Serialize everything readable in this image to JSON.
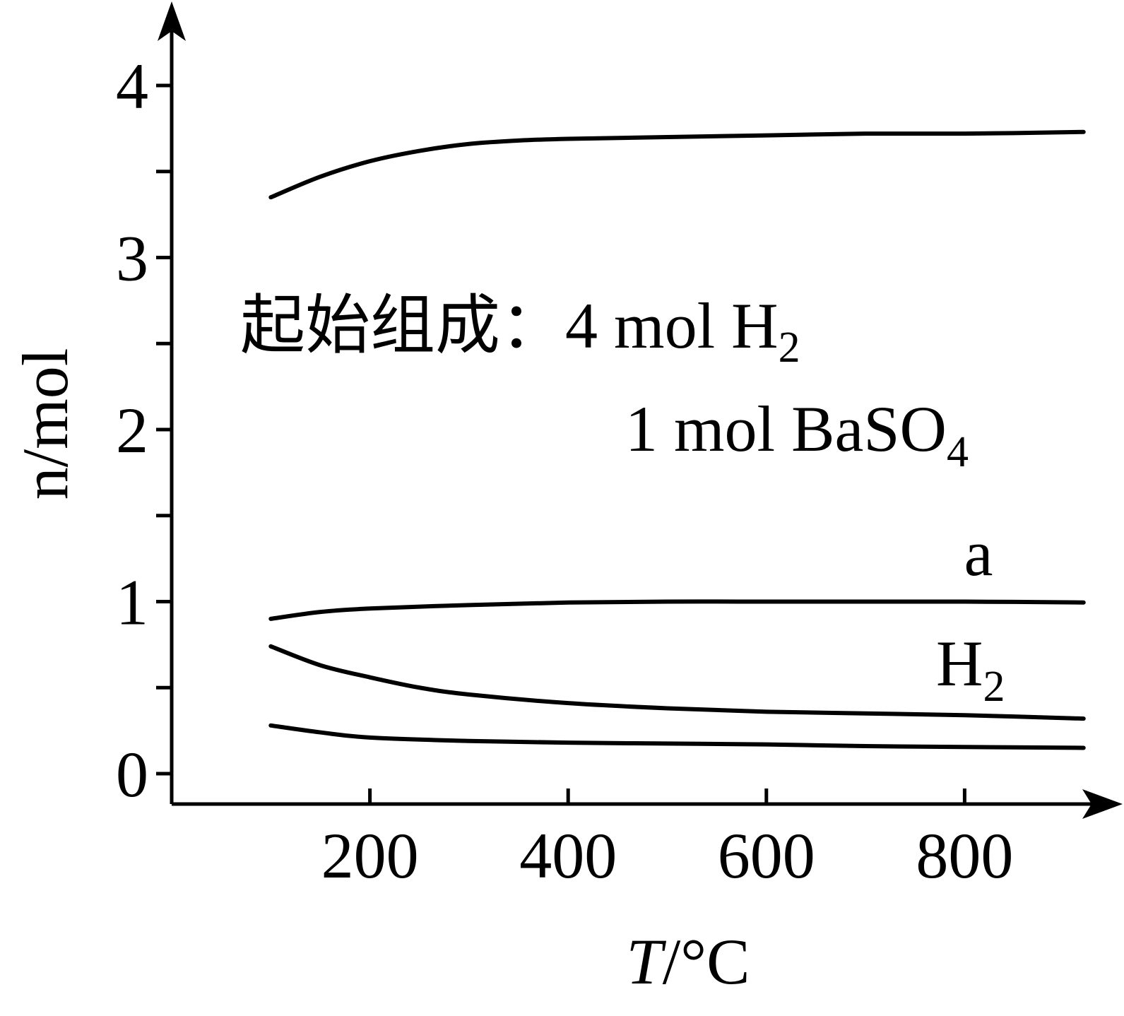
{
  "chart_data": {
    "type": "line",
    "xlabel": {
      "italic": "T",
      "rest": "/°C"
    },
    "ylabel": "n/mol",
    "xlim": [
      0,
      920
    ],
    "ylim": [
      0,
      4
    ],
    "x_ticks": [
      200,
      400,
      600,
      800
    ],
    "x_tick_labels": [
      "200",
      "400",
      "600",
      "800"
    ],
    "y_ticks": [
      0,
      0.5,
      1,
      1.5,
      2,
      2.5,
      3,
      3.5,
      4
    ],
    "y_tick_labels": [
      "0",
      "",
      "1",
      "",
      "2",
      "",
      "3",
      "",
      "4"
    ],
    "annotation": {
      "line1_label": "起始组成：",
      "line1_value": "4 mol H",
      "line1_sub": "2",
      "line2_value": "1 mol BaSO",
      "line2_sub": "4"
    },
    "series": [
      {
        "name": "",
        "x": [
          100,
          150,
          200,
          250,
          300,
          350,
          400,
          500,
          600,
          700,
          800,
          920
        ],
        "y": [
          3.35,
          3.47,
          3.56,
          3.62,
          3.66,
          3.68,
          3.69,
          3.7,
          3.71,
          3.72,
          3.72,
          3.73
        ]
      },
      {
        "name": "a",
        "x": [
          100,
          150,
          200,
          300,
          400,
          500,
          600,
          700,
          800,
          920
        ],
        "y": [
          0.9,
          0.94,
          0.96,
          0.98,
          0.995,
          1.0,
          1.0,
          1.0,
          1.0,
          0.995
        ]
      },
      {
        "name": "H2",
        "x": [
          100,
          150,
          200,
          250,
          300,
          400,
          500,
          600,
          700,
          800,
          920
        ],
        "y": [
          0.74,
          0.63,
          0.56,
          0.5,
          0.46,
          0.41,
          0.38,
          0.36,
          0.35,
          0.34,
          0.32
        ]
      },
      {
        "name": "",
        "x": [
          100,
          150,
          200,
          300,
          400,
          500,
          600,
          700,
          800,
          920
        ],
        "y": [
          0.28,
          0.24,
          0.21,
          0.19,
          0.18,
          0.175,
          0.17,
          0.16,
          0.155,
          0.15
        ]
      }
    ],
    "series_labels": {
      "a": "a",
      "h2_main": "H",
      "h2_sub": "2"
    },
    "grid": false,
    "legend": "none"
  }
}
